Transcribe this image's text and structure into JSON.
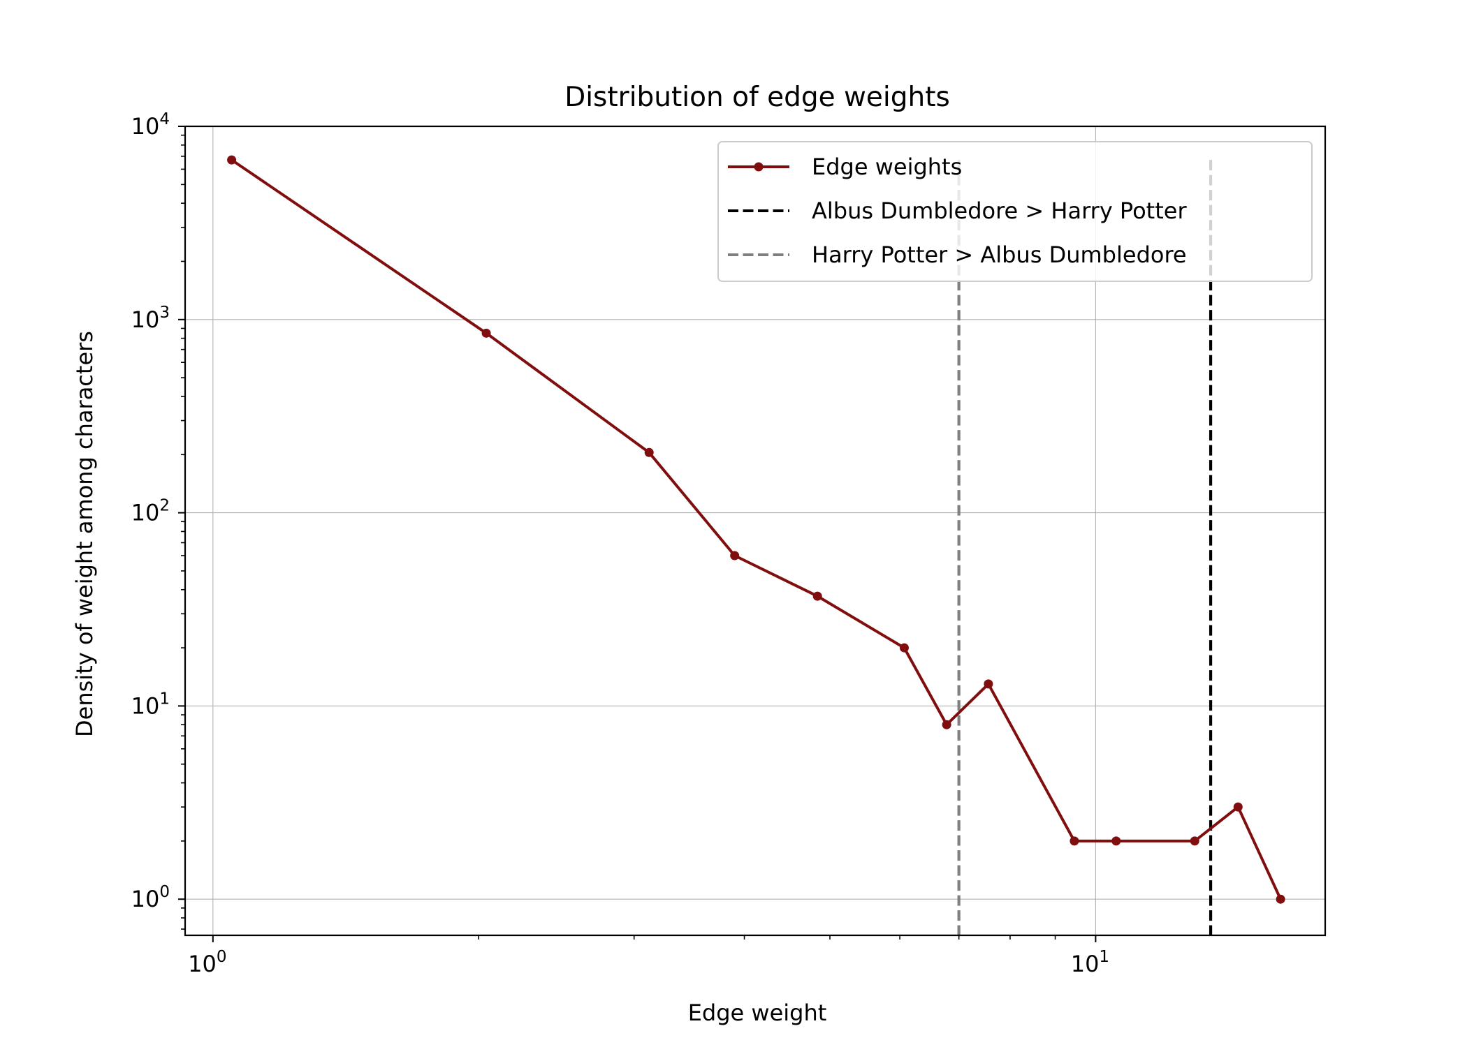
{
  "chart_data": {
    "type": "line",
    "title": "Distribution of edge weights",
    "xlabel": "Edge weight",
    "ylabel": "Density of weight among characters",
    "x_scale": "log",
    "y_scale": "log",
    "xlim": [
      0.93,
      18.2
    ],
    "ylim": [
      0.65,
      10000
    ],
    "x_ticks": [
      {
        "base": "10",
        "exp": "0",
        "value": 1
      },
      {
        "base": "10",
        "exp": "1",
        "value": 10
      }
    ],
    "y_ticks": [
      {
        "base": "10",
        "exp": "0",
        "value": 1
      },
      {
        "base": "10",
        "exp": "1",
        "value": 10
      },
      {
        "base": "10",
        "exp": "2",
        "value": 100
      },
      {
        "base": "10",
        "exp": "3",
        "value": 1000
      },
      {
        "base": "10",
        "exp": "4",
        "value": 10000
      }
    ],
    "grid": true,
    "legend_position": "top-right",
    "series": [
      {
        "name": "Edge weights",
        "color": "#800e0e",
        "style": "solid",
        "marker": "circle",
        "x": [
          1.05,
          2.04,
          3.12,
          3.9,
          4.84,
          6.07,
          6.78,
          7.56,
          9.46,
          10.55,
          12.95,
          14.5,
          16.2
        ],
        "y": [
          6700,
          850,
          205,
          60,
          37,
          20,
          8,
          13,
          2,
          2,
          2,
          3,
          1
        ]
      }
    ],
    "vlines": [
      {
        "name": "Albus Dumbledore > Harry Potter",
        "x": 13.5,
        "color": "#000000",
        "style": "dashed"
      },
      {
        "name": "Harry Potter > Albus Dumbledore",
        "x": 7.0,
        "color": "#808080",
        "style": "dashed"
      }
    ]
  }
}
